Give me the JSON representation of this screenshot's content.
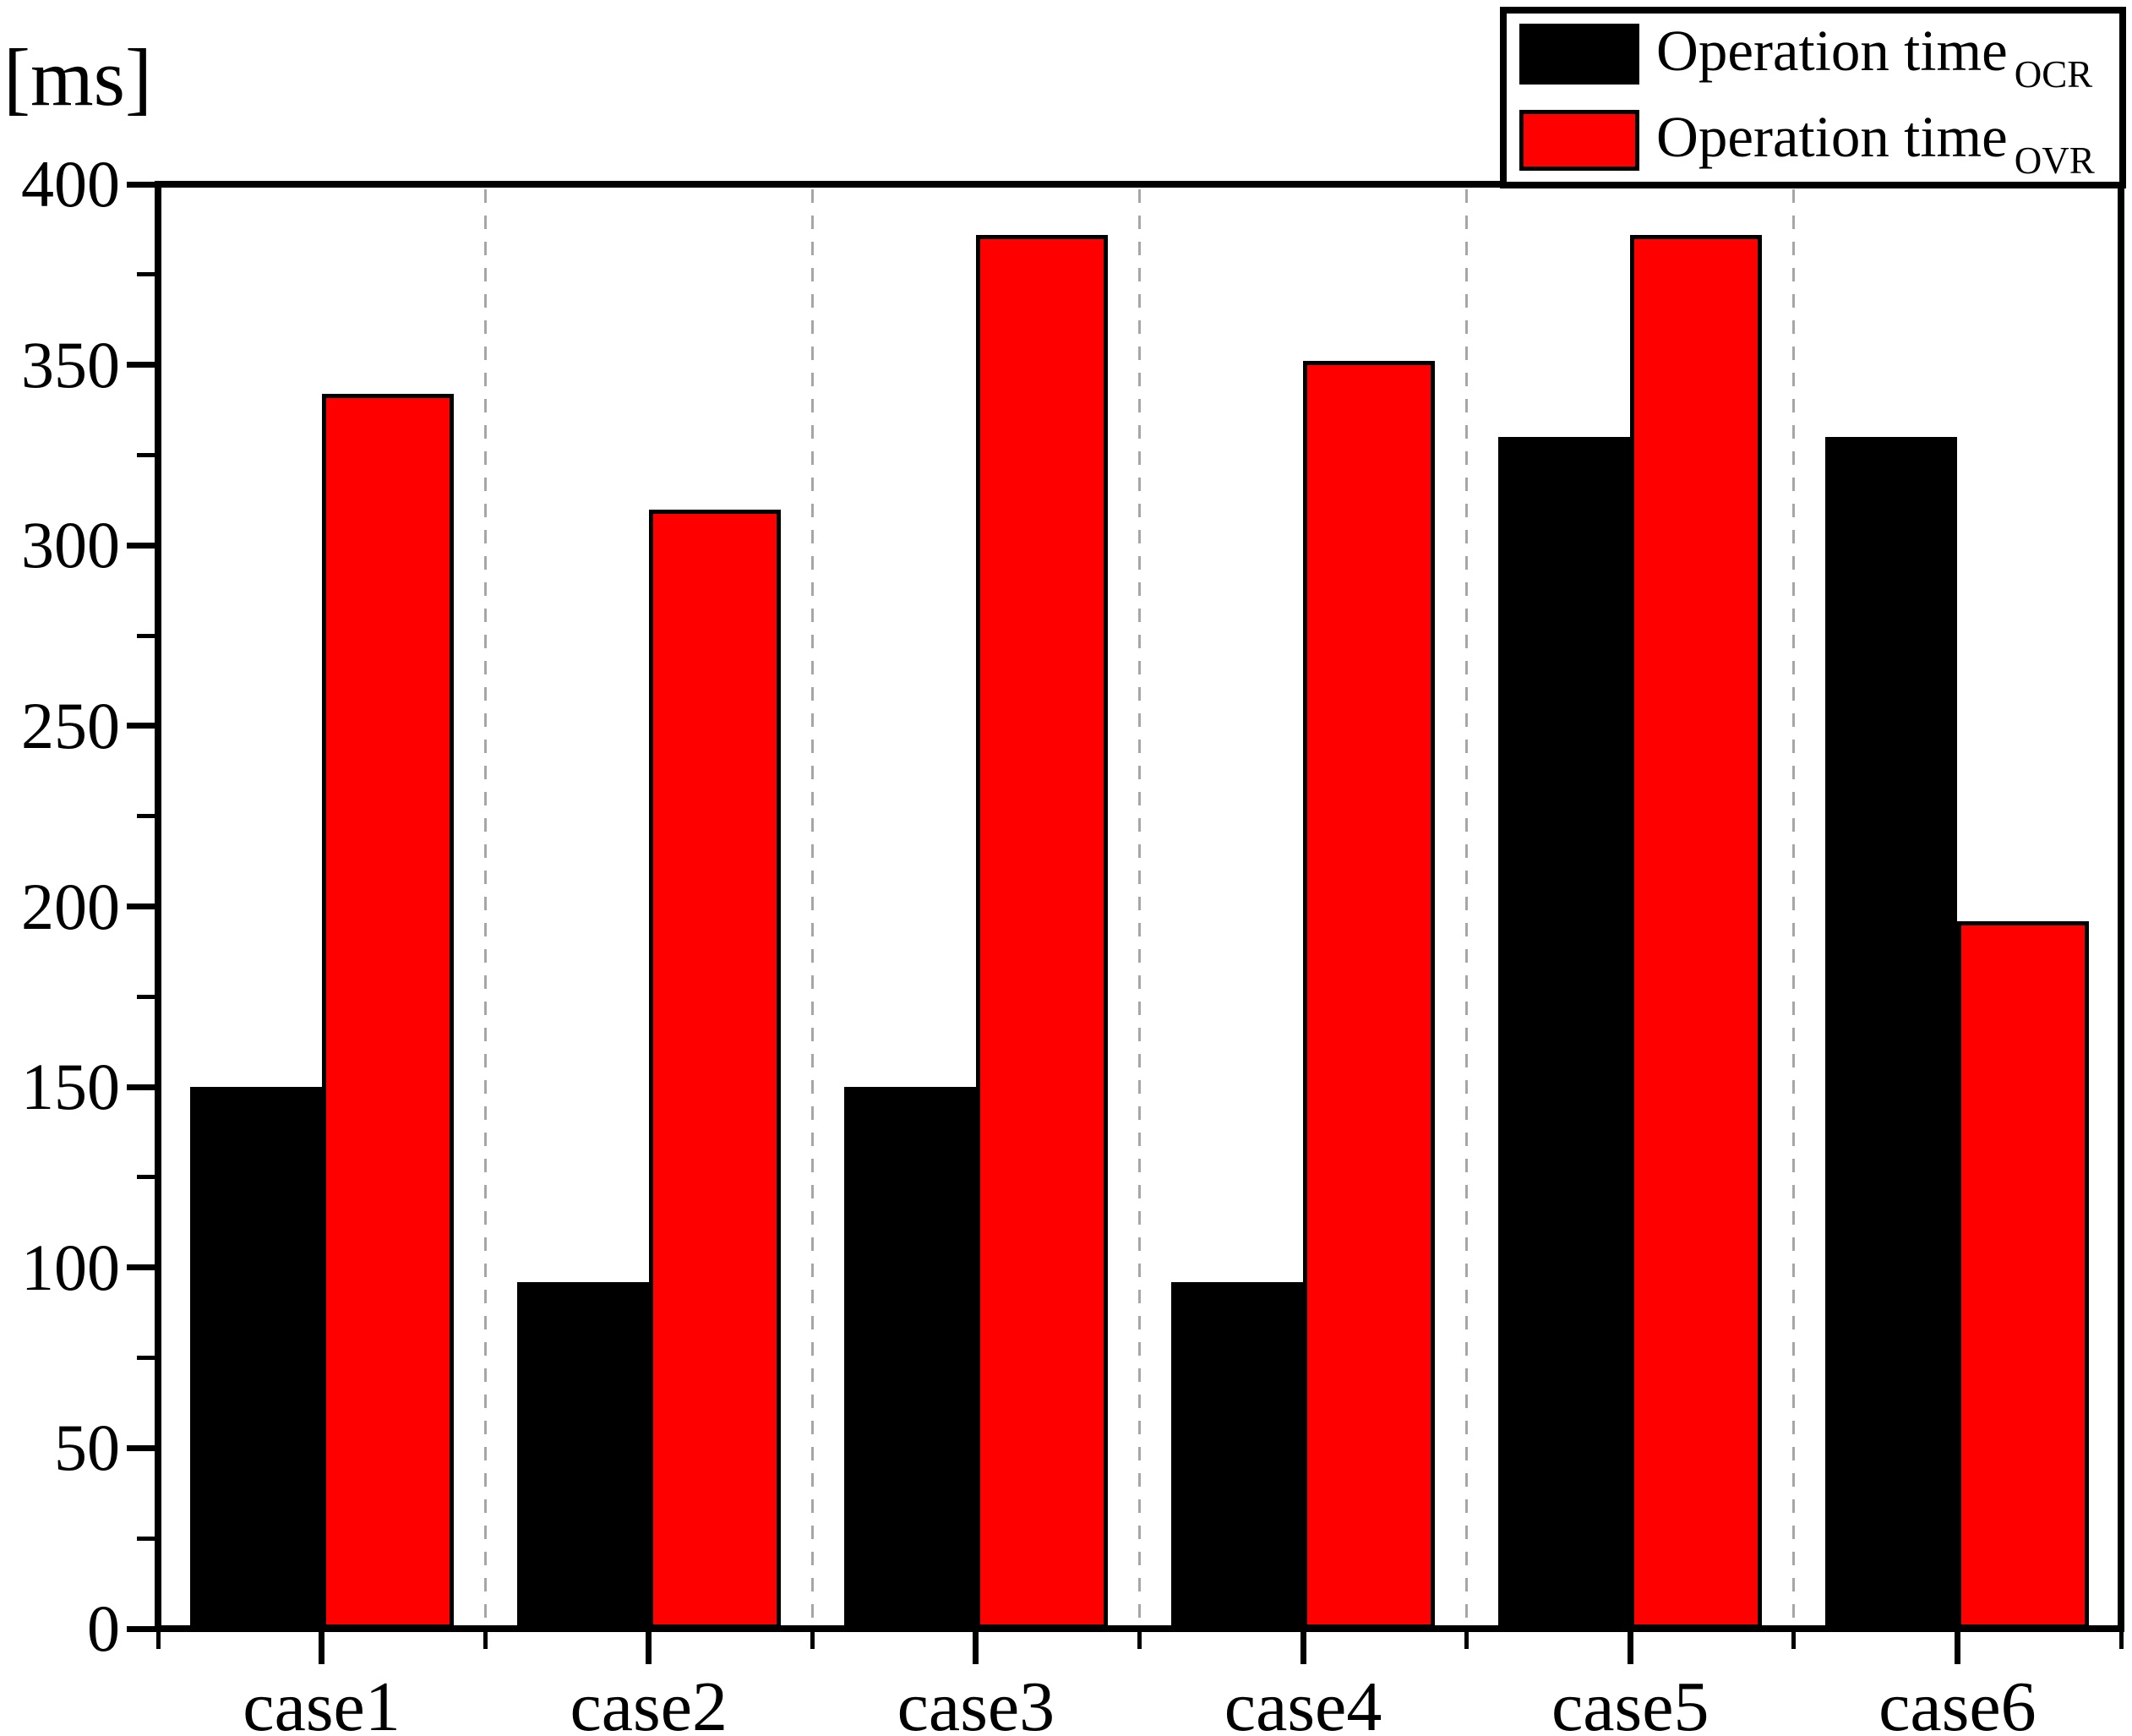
{
  "y_axis": {
    "unit": "[ms]",
    "tick_labels": [
      "0",
      "50",
      "100",
      "150",
      "200",
      "250",
      "300",
      "350",
      "400"
    ]
  },
  "legend": {
    "items": [
      {
        "label": "Operation time",
        "subscript": "OCR",
        "color": "#000000"
      },
      {
        "label": "Operation time",
        "subscript": "OVR",
        "color": "#ff0000"
      }
    ]
  },
  "colors": {
    "series_ocr": "#000000",
    "series_ovr": "#ff0000",
    "bar_outline": "#000000",
    "gridline": "#a6a6a6",
    "background": "#ffffff",
    "text": "#000000"
  },
  "chart_data": {
    "type": "bar",
    "title": "",
    "xlabel": "",
    "ylabel": "[ms]",
    "categories": [
      "case1",
      "case2",
      "case3",
      "case4",
      "case5",
      "case6"
    ],
    "series": [
      {
        "name": "Operation time OCR",
        "color": "#000000",
        "values": [
          150,
          96,
          150,
          96,
          330,
          330
        ]
      },
      {
        "name": "Operation time OVR",
        "color": "#ff0000",
        "values": [
          342,
          310,
          386,
          351,
          386,
          196
        ]
      }
    ],
    "ylim": [
      0,
      400
    ],
    "yticks_major": [
      0,
      50,
      100,
      150,
      200,
      250,
      300,
      350,
      400
    ],
    "ytick_minor_step": 25,
    "grid": "vertical dashed separators between category groups",
    "legend_position": "top-right"
  }
}
